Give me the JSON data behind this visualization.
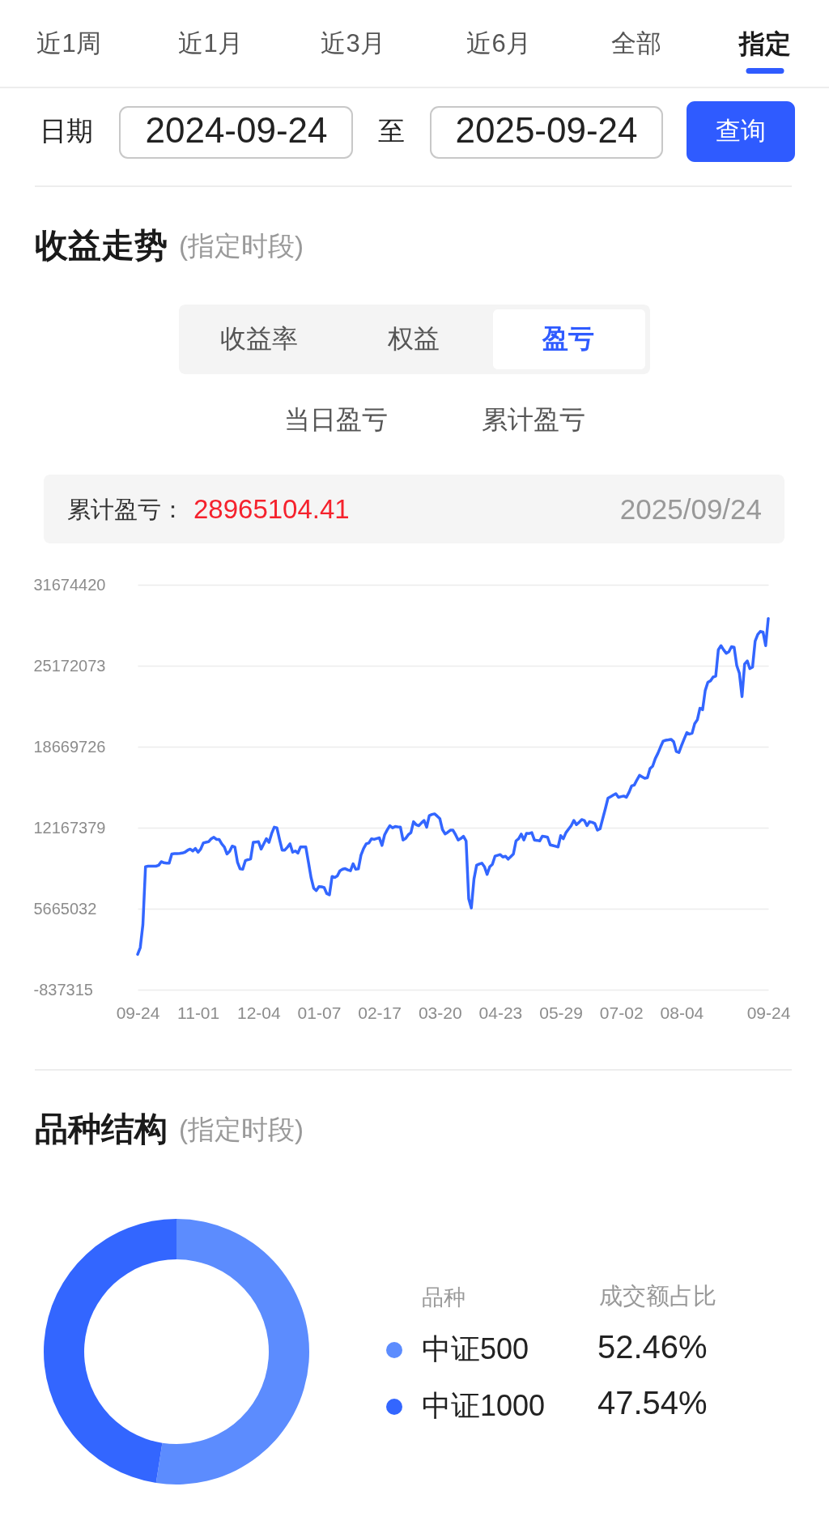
{
  "chart_data": [
    {
      "type": "line",
      "title": "收益走势",
      "subtitle": "(指定时段)",
      "annotations": [
        "近1周",
        "近1月",
        "近3月",
        "近6月",
        "全部",
        "指定",
        "日期",
        "2024-09-24",
        "至",
        "2025-09-24",
        "查询",
        "收益率",
        "权益",
        "盈亏",
        "当日盈亏",
        "累计盈亏",
        "累计盈亏：",
        "28965104.41",
        "2025/09/24"
      ],
      "categories": [
        "09-24",
        null,
        null,
        null,
        null,
        null,
        null,
        null,
        null,
        null,
        null,
        null,
        null,
        null,
        null,
        null,
        null,
        null,
        null,
        null,
        null,
        null,
        null,
        "11-01",
        null,
        null,
        null,
        null,
        null,
        null,
        null,
        null,
        null,
        null,
        null,
        null,
        null,
        null,
        null,
        null,
        null,
        null,
        null,
        null,
        null,
        null,
        "12-04",
        null,
        null,
        null,
        null,
        null,
        null,
        null,
        null,
        null,
        null,
        null,
        null,
        null,
        null,
        null,
        null,
        null,
        null,
        null,
        null,
        null,
        null,
        "01-07",
        null,
        null,
        null,
        null,
        null,
        null,
        null,
        null,
        null,
        null,
        null,
        null,
        null,
        null,
        null,
        null,
        null,
        null,
        null,
        null,
        null,
        null,
        "02-17",
        null,
        null,
        null,
        null,
        null,
        null,
        null,
        null,
        null,
        null,
        null,
        null,
        null,
        null,
        null,
        null,
        null,
        null,
        null,
        null,
        null,
        null,
        "03-20",
        null,
        null,
        null,
        null,
        null,
        null,
        null,
        null,
        null,
        null,
        null,
        null,
        null,
        null,
        null,
        null,
        null,
        null,
        null,
        null,
        null,
        null,
        "04-23",
        null,
        null,
        null,
        null,
        null,
        null,
        null,
        null,
        null,
        null,
        null,
        null,
        null,
        null,
        null,
        null,
        null,
        null,
        null,
        null,
        null,
        null,
        "05-29",
        null,
        null,
        null,
        null,
        null,
        null,
        null,
        null,
        null,
        null,
        null,
        null,
        null,
        null,
        null,
        null,
        null,
        null,
        null,
        null,
        null,
        null,
        "07-02",
        null,
        null,
        null,
        null,
        null,
        null,
        null,
        null,
        null,
        null,
        null,
        null,
        null,
        null,
        null,
        null,
        null,
        null,
        null,
        null,
        null,
        null,
        "08-04",
        null,
        null,
        null,
        null,
        null,
        null,
        null,
        null,
        null,
        null,
        null,
        null,
        null,
        null,
        null,
        null,
        null,
        null,
        null,
        null,
        null,
        null,
        null,
        null,
        null,
        null,
        null,
        null,
        null,
        null,
        null,
        null,
        "09-24"
      ],
      "series": [
        {
          "color": "#3366ff",
          "values": [
            2000000,
            2540000,
            4380000,
            9030000,
            9080000,
            9080000,
            9080000,
            9080000,
            9150000,
            9440000,
            9350000,
            9320000,
            9320000,
            10060000,
            10080000,
            10080000,
            10100000,
            10130000,
            10200000,
            10350000,
            10450000,
            10300000,
            10500000,
            10200000,
            10450000,
            10940000,
            11000000,
            11040000,
            11280000,
            11400000,
            11230000,
            11230000,
            10870000,
            10620000,
            10060000,
            10260000,
            10690000,
            10620000,
            9400000,
            8860000,
            8830000,
            9520000,
            9600000,
            9660000,
            10990000,
            11020000,
            11040000,
            10450000,
            10870000,
            11280000,
            10990000,
            11700000,
            12210000,
            12160000,
            11230000,
            10370000,
            10370000,
            10600000,
            10870000,
            10200000,
            10300000,
            10130000,
            10620000,
            10620000,
            10620000,
            9400000,
            8170000,
            7310000,
            7120000,
            7440000,
            7420000,
            7360000,
            6870000,
            6780000,
            8250000,
            8170000,
            8300000,
            8710000,
            8830000,
            8880000,
            8780000,
            8710000,
            9270000,
            8830000,
            8860000,
            9960000,
            10500000,
            10870000,
            10940000,
            11280000,
            11230000,
            11300000,
            11350000,
            10740000,
            11600000,
            12000000,
            12330000,
            12160000,
            12260000,
            12230000,
            12210000,
            11180000,
            11300000,
            11600000,
            11770000,
            12650000,
            12410000,
            12330000,
            12550000,
            12750000,
            12210000,
            13140000,
            13230000,
            13280000,
            13100000,
            12900000,
            12020000,
            11670000,
            11800000,
            11970000,
            11970000,
            11600000,
            11180000,
            11300000,
            11480000,
            11110000,
            6460000,
            5720000,
            8050000,
            9150000,
            9250000,
            9320000,
            9030000,
            8420000,
            9030000,
            9230000,
            9880000,
            9950000,
            10010000,
            9810000,
            9880000,
            9640000,
            9850000,
            10060000,
            11110000,
            11280000,
            11650000,
            11180000,
            11720000,
            11700000,
            11770000,
            11180000,
            11150000,
            11110000,
            11480000,
            11450000,
            11400000,
            10790000,
            10740000,
            10680000,
            10620000,
            11530000,
            11280000,
            11770000,
            12050000,
            12330000,
            12750000,
            12410000,
            12600000,
            12820000,
            12750000,
            12330000,
            12650000,
            12600000,
            12500000,
            11970000,
            12090000,
            12900000,
            13700000,
            14540000,
            14660000,
            14780000,
            14900000,
            14610000,
            14660000,
            14710000,
            14610000,
            15000000,
            15520000,
            15590000,
            16000000,
            16370000,
            16250000,
            16130000,
            16180000,
            16910000,
            17110000,
            17720000,
            18140000,
            18650000,
            19120000,
            19190000,
            19220000,
            19260000,
            19070000,
            18290000,
            18210000,
            18770000,
            19300000,
            19800000,
            19680000,
            19750000,
            20530000,
            20830000,
            21760000,
            21640000,
            23180000,
            23840000,
            23960000,
            24260000,
            24330000,
            26460000,
            26780000,
            26450000,
            26170000,
            26290000,
            26700000,
            26650000,
            25190000,
            24570000,
            22690000,
            25310000,
            25550000,
            24940000,
            25060000,
            27150000,
            27680000,
            27930000,
            27880000,
            26780000,
            28965104.41
          ]
        }
      ],
      "ylim": [
        -837315,
        31674420
      ],
      "yticks": [
        -837315,
        5665032,
        12167379,
        18669726,
        25172073,
        31674420
      ],
      "grid": "y",
      "line_style": "solid"
    },
    {
      "type": "donut",
      "title": "品种结构",
      "subtitle": "(指定时段)",
      "categories": [
        "中证500",
        "中证1000"
      ],
      "values": [
        52.46,
        47.54
      ],
      "colors": [
        "#5c8cfe",
        "#3366ff"
      ],
      "legend_title": "品种",
      "legend": "right",
      "value_labels": [
        "52.46%",
        "47.54%"
      ],
      "annotations": [
        "成交额占比"
      ]
    }
  ]
}
